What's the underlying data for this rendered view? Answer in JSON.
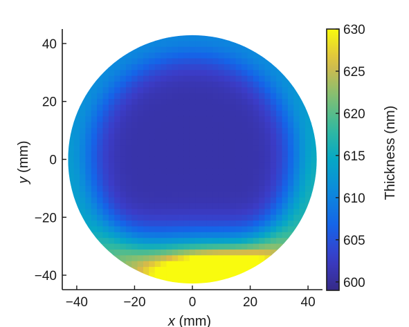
{
  "chart_data": {
    "type": "heatmap",
    "xlabel_var": "x",
    "xlabel_unit": " (mm)",
    "ylabel_var": "y",
    "ylabel_unit": " (mm)",
    "xlim": [
      -45,
      45
    ],
    "ylim": [
      -45,
      45
    ],
    "x_ticks": [
      -40,
      -20,
      0,
      20,
      40
    ],
    "y_ticks": [
      -40,
      -20,
      0,
      20,
      40
    ],
    "x_tick_labels": [
      "−40",
      "−20",
      "0",
      "20",
      "40"
    ],
    "y_tick_labels": [
      "−40",
      "−20",
      "0",
      "20",
      "40"
    ],
    "wafer_diameter_mm": 86,
    "colorbar": {
      "label": "Thickness (nm)",
      "range": [
        599,
        630
      ],
      "ticks": [
        600,
        605,
        610,
        615,
        620,
        625,
        630
      ],
      "tick_labels": [
        "600",
        "605",
        "610",
        "615",
        "620",
        "625",
        "630"
      ],
      "colormap": "parula"
    },
    "thickness_field": {
      "baseline_nm": 601,
      "features": [
        {
          "kind": "peak",
          "x": 8,
          "y": -42,
          "sx": 14,
          "sy": 6,
          "amplitude_nm": 28
        },
        {
          "kind": "ridge",
          "x": 2,
          "y": -36,
          "sx": 26,
          "sy": 8,
          "amplitude_nm": 16
        },
        {
          "kind": "edge_band",
          "angle_deg": 90,
          "width_deg": 60,
          "amplitude_nm": 8
        },
        {
          "kind": "edge_band",
          "angle_deg": 0,
          "width_deg": 40,
          "amplitude_nm": 6
        },
        {
          "kind": "edge_band",
          "angle_deg": 180,
          "width_deg": 45,
          "amplitude_nm": 5
        },
        {
          "kind": "edge_band",
          "angle_deg": -40,
          "width_deg": 40,
          "amplitude_nm": 9
        },
        {
          "kind": "edge_band",
          "angle_deg": -140,
          "width_deg": 40,
          "amplitude_nm": 7
        }
      ]
    }
  }
}
